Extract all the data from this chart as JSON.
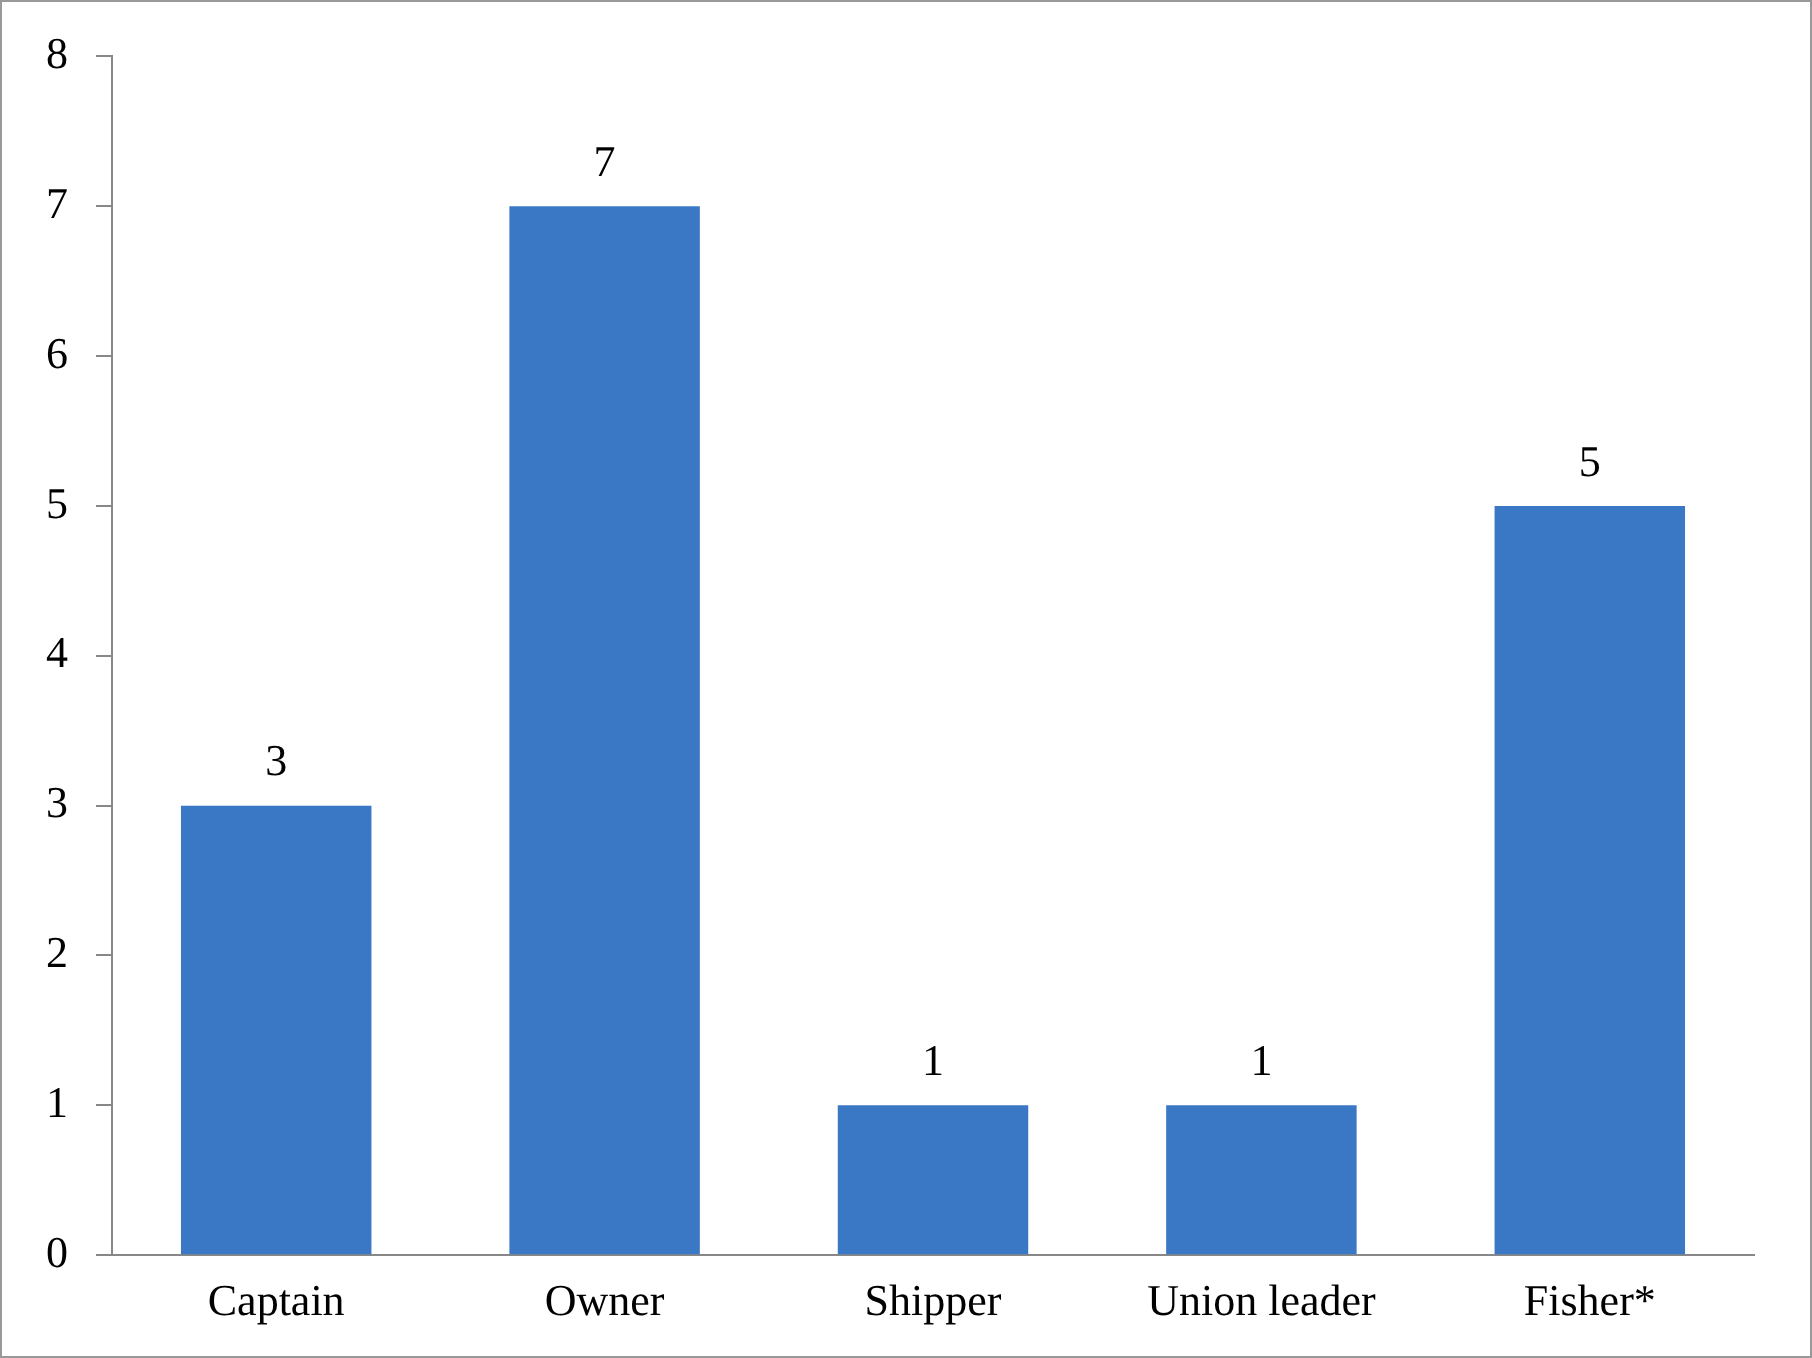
{
  "chart_data": {
    "type": "bar",
    "categories": [
      "Captain",
      "Owner",
      "Shipper",
      "Union leader",
      "Fisher*"
    ],
    "values": [
      3,
      7,
      1,
      1,
      5
    ],
    "color": "#3a78c6",
    "ylim": [
      0,
      8
    ],
    "yticks": [
      0,
      1,
      2,
      3,
      4,
      5,
      6,
      7,
      8
    ],
    "grid": false,
    "legend": false,
    "data_labels": true
  }
}
